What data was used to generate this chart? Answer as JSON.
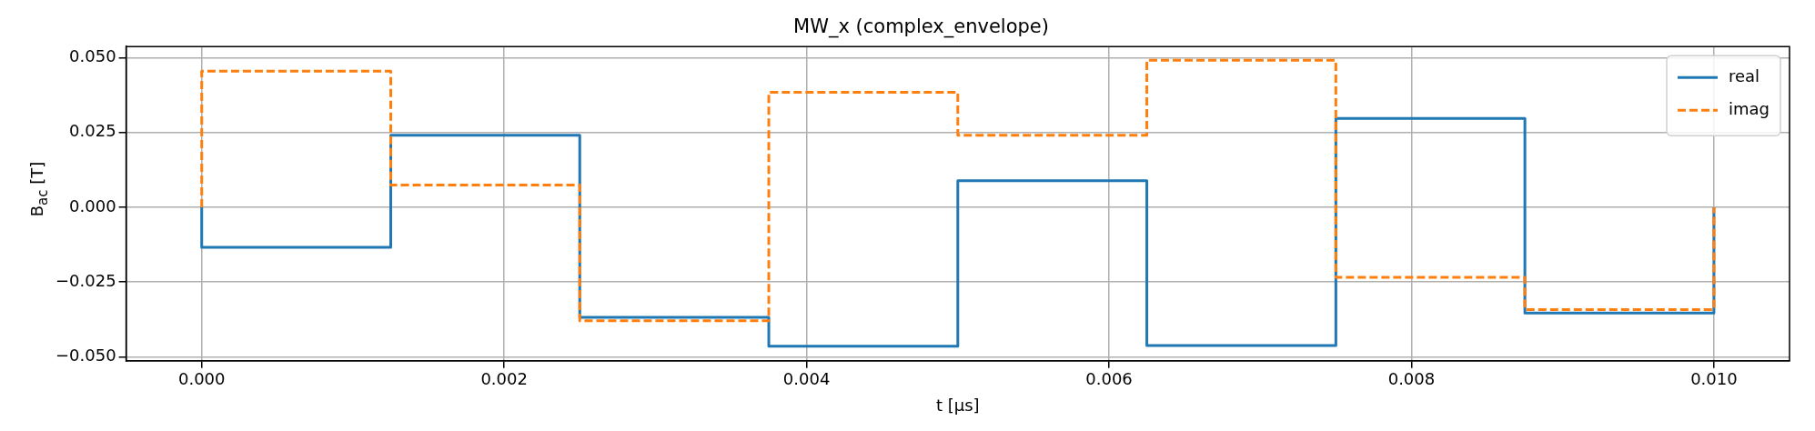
{
  "chart_data": {
    "type": "step",
    "title": "MW_x (complex_envelope)",
    "xlabel": "t [μs]",
    "ylabel": "B$_{ac}$ [T]",
    "x": [
      0,
      0,
      0.00125,
      0.0025,
      0.00375,
      0.005,
      0.00625,
      0.0075,
      0.00875,
      0.01
    ],
    "series": [
      {
        "name": "real",
        "color": "#1f77b4",
        "line_style": "solid",
        "values": [
          0,
          -0.0134,
          0.0241,
          -0.0368,
          -0.0464,
          0.0089,
          -0.0462,
          0.0297,
          -0.0353,
          0
        ]
      },
      {
        "name": "imag",
        "color": "#ff7f0e",
        "line_style": "dashed",
        "values": [
          0,
          0.0455,
          0.0074,
          -0.0379,
          0.0384,
          0.0241,
          0.0491,
          -0.0234,
          -0.0342,
          0
        ]
      }
    ],
    "xlim": [
      -0.0005,
      0.0105
    ],
    "xticks": [
      {
        "value": 0,
        "label": "0.000"
      },
      {
        "value": 0.002,
        "label": "0.002"
      },
      {
        "value": 0.004,
        "label": "0.004"
      },
      {
        "value": 0.006,
        "label": "0.006"
      },
      {
        "value": 0.008,
        "label": "0.008"
      },
      {
        "value": 0.01,
        "label": "0.010"
      }
    ],
    "ylim": [
      -0.0513,
      0.0537
    ],
    "yticks": [
      {
        "value": -0.05,
        "label": "−0.050"
      },
      {
        "value": -0.025,
        "label": "−0.025"
      },
      {
        "value": 0,
        "label": "0.000"
      },
      {
        "value": 0.025,
        "label": "0.025"
      },
      {
        "value": 0.05,
        "label": "0.050"
      }
    ],
    "grid": true,
    "legend": "top right"
  }
}
